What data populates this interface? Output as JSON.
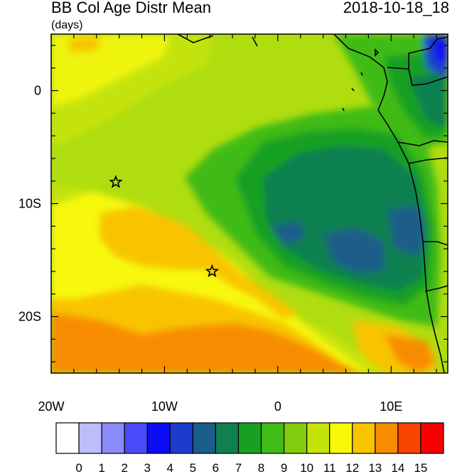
{
  "header": {
    "title": "BB Col Age Distr Mean",
    "units": "(days)",
    "datetime": "2018-10-18_18"
  },
  "map": {
    "lon_range": [
      -20,
      15
    ],
    "lat_range": [
      -25,
      5
    ],
    "x_tick_labels": [
      {
        "lon": -20,
        "label": "20W"
      },
      {
        "lon": -10,
        "label": "10W"
      },
      {
        "lon": 0,
        "label": "0"
      },
      {
        "lon": 10,
        "label": "10E"
      }
    ],
    "y_tick_labels": [
      {
        "lat": 0,
        "label": "0"
      },
      {
        "lat": -10,
        "label": "10S"
      },
      {
        "lat": -20,
        "label": "20S"
      }
    ],
    "markers": [
      {
        "name": "star-marker-1",
        "lon": -14.3,
        "lat": -8.1
      },
      {
        "name": "star-marker-2",
        "lon": -5.8,
        "lat": -16.0
      }
    ]
  },
  "colorbar": {
    "labels": [
      "0",
      "1",
      "2",
      "3",
      "4",
      "5",
      "6",
      "7",
      "8",
      "9",
      "10",
      "11",
      "12",
      "13",
      "14",
      "15"
    ],
    "colors": [
      "#ffffff",
      "#bdbdfb",
      "#8a8af8",
      "#4a4af9",
      "#0c0cf5",
      "#1c3ccc",
      "#1b5d8a",
      "#108050",
      "#18a020",
      "#40bb18",
      "#82cc0f",
      "#c4e30a",
      "#f8f80a",
      "#f8c400",
      "#f88c00",
      "#f84400",
      "#f80000"
    ]
  }
}
